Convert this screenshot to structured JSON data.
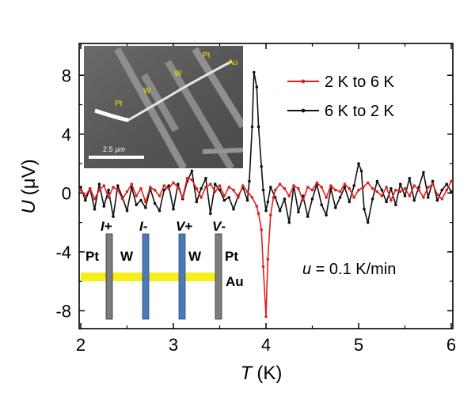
{
  "chart_data": {
    "type": "line",
    "xlabel_var": "T",
    "xlabel_unit": "(K)",
    "ylabel_var": "U",
    "ylabel_unit": "(μV)",
    "xlim": [
      2,
      6
    ],
    "ylim": [
      -9,
      10
    ],
    "x_ticks": [
      2,
      3,
      4,
      5,
      6
    ],
    "x_tick_labels": [
      "2",
      "3",
      "4",
      "5",
      "6"
    ],
    "y_ticks": [
      -8,
      -4,
      0,
      4,
      8
    ],
    "y_tick_labels": [
      "-8",
      "-4",
      "0",
      "4",
      "8"
    ],
    "grid": false,
    "legend_position": "top-right",
    "series": [
      {
        "name": "2 K to 6 K",
        "color": "#e02020",
        "x": [
          2.0,
          2.05,
          2.1,
          2.15,
          2.2,
          2.25,
          2.3,
          2.35,
          2.4,
          2.45,
          2.5,
          2.55,
          2.6,
          2.65,
          2.7,
          2.75,
          2.8,
          2.85,
          2.9,
          2.95,
          3.0,
          3.05,
          3.1,
          3.15,
          3.2,
          3.25,
          3.3,
          3.35,
          3.4,
          3.45,
          3.5,
          3.55,
          3.6,
          3.65,
          3.7,
          3.75,
          3.8,
          3.85,
          3.9,
          3.92,
          3.95,
          3.97,
          4.0,
          4.02,
          4.05,
          4.08,
          4.1,
          4.15,
          4.2,
          4.25,
          4.3,
          4.35,
          4.4,
          4.45,
          4.5,
          4.55,
          4.6,
          4.65,
          4.7,
          4.75,
          4.8,
          4.85,
          4.9,
          4.95,
          5.0,
          5.05,
          5.1,
          5.15,
          5.2,
          5.25,
          5.3,
          5.35,
          5.4,
          5.45,
          5.5,
          5.55,
          5.6,
          5.65,
          5.7,
          5.75,
          5.8,
          5.85,
          5.9,
          5.95,
          6.0
        ],
        "y": [
          0.2,
          -0.2,
          0.3,
          -0.4,
          0.2,
          0.5,
          -0.3,
          0.4,
          0.2,
          -0.4,
          0.1,
          0.6,
          -0.2,
          0.3,
          -0.6,
          0.4,
          0.2,
          -0.2,
          0.5,
          0.3,
          0.7,
          0.4,
          -0.3,
          1.0,
          0.9,
          0.3,
          -0.3,
          0.4,
          0.6,
          0.1,
          0.5,
          -0.2,
          0.4,
          0.2,
          -0.3,
          0.5,
          0.1,
          -0.3,
          -0.9,
          -1.4,
          -2.5,
          -5.0,
          -8.4,
          -4.5,
          -1.5,
          -0.3,
          0.2,
          0.6,
          0.3,
          -0.2,
          0.5,
          0.3,
          -0.5,
          0.4,
          0.2,
          0.7,
          0.4,
          -0.3,
          0.5,
          0.2,
          0.1,
          0.6,
          0.3,
          -0.3,
          0.2,
          0.4,
          0.7,
          0.3,
          0.1,
          -0.2,
          0.4,
          -0.5,
          0.2,
          0.1,
          0.3,
          -0.2,
          0.5,
          0.2,
          -0.3,
          0.4,
          0.6,
          -0.1,
          -0.4,
          0.2,
          0.8
        ]
      },
      {
        "name": "6 K to 2 K",
        "color": "#111111",
        "x": [
          2.0,
          2.05,
          2.1,
          2.15,
          2.2,
          2.25,
          2.3,
          2.35,
          2.4,
          2.45,
          2.5,
          2.55,
          2.6,
          2.65,
          2.7,
          2.75,
          2.8,
          2.85,
          2.9,
          2.95,
          3.0,
          3.05,
          3.1,
          3.15,
          3.2,
          3.25,
          3.3,
          3.35,
          3.4,
          3.45,
          3.5,
          3.55,
          3.6,
          3.65,
          3.7,
          3.75,
          3.8,
          3.82,
          3.85,
          3.87,
          3.9,
          3.92,
          3.95,
          3.97,
          4.0,
          4.02,
          4.05,
          4.1,
          4.15,
          4.2,
          4.25,
          4.3,
          4.35,
          4.4,
          4.45,
          4.5,
          4.55,
          4.6,
          4.65,
          4.7,
          4.75,
          4.8,
          4.85,
          4.9,
          4.95,
          5.0,
          5.03,
          5.06,
          5.1,
          5.15,
          5.2,
          5.25,
          5.3,
          5.35,
          5.4,
          5.45,
          5.5,
          5.55,
          5.6,
          5.65,
          5.7,
          5.75,
          5.8,
          5.85,
          5.9,
          5.95,
          6.0
        ],
        "y": [
          0.4,
          -0.5,
          0.3,
          -1.1,
          0.6,
          -0.9,
          0.2,
          -1.6,
          0.5,
          -0.3,
          -1.2,
          0.4,
          -0.8,
          -0.5,
          -1.0,
          0.3,
          -0.7,
          -1.2,
          0.2,
          0.5,
          -1.1,
          0.6,
          -0.4,
          0.8,
          1.5,
          -0.6,
          0.3,
          1.0,
          -1.4,
          0.6,
          0.2,
          -0.5,
          -0.3,
          -1.1,
          -0.2,
          0.4,
          -0.5,
          0.8,
          4.5,
          8.2,
          7.2,
          4.5,
          1.8,
          0.2,
          -1.2,
          -0.6,
          0.4,
          -0.3,
          -1.2,
          -0.4,
          -2.0,
          0.5,
          -1.3,
          -0.2,
          -1.6,
          -0.4,
          0.6,
          -0.8,
          -1.5,
          0.3,
          -1.0,
          -0.3,
          0.4,
          -0.6,
          0.5,
          2.0,
          1.5,
          -1.1,
          -2.0,
          -0.4,
          0.8,
          0.2,
          -0.6,
          0.3,
          -0.8,
          0.6,
          -0.2,
          1.0,
          -0.5,
          0.4,
          1.4,
          -0.3,
          0.8,
          -0.5,
          0.2,
          0.6,
          0.1
        ]
      }
    ],
    "annotation_var": "u",
    "annotation_text": " = 0.1 K/min"
  },
  "schematic": {
    "contacts": [
      {
        "terminal_var": "I",
        "terminal_sign": "+",
        "material": "Pt",
        "color": "#7d7d7d"
      },
      {
        "terminal_var": "I",
        "terminal_sign": "-",
        "material": "W",
        "color": "#4a7ab8"
      },
      {
        "terminal_var": "V",
        "terminal_sign": "+",
        "material": "W",
        "color": "#4a7ab8"
      },
      {
        "terminal_var": "V",
        "terminal_sign": "-",
        "material": "Pt",
        "color": "#7d7d7d"
      }
    ],
    "wire_label": "Au",
    "wire_color": "#f5ee1a"
  },
  "inset": {
    "labels": [
      "Pt",
      "W",
      "W",
      "Pt",
      "Au"
    ],
    "scale_label_value": "2.5",
    "scale_label_unit": "μm"
  }
}
